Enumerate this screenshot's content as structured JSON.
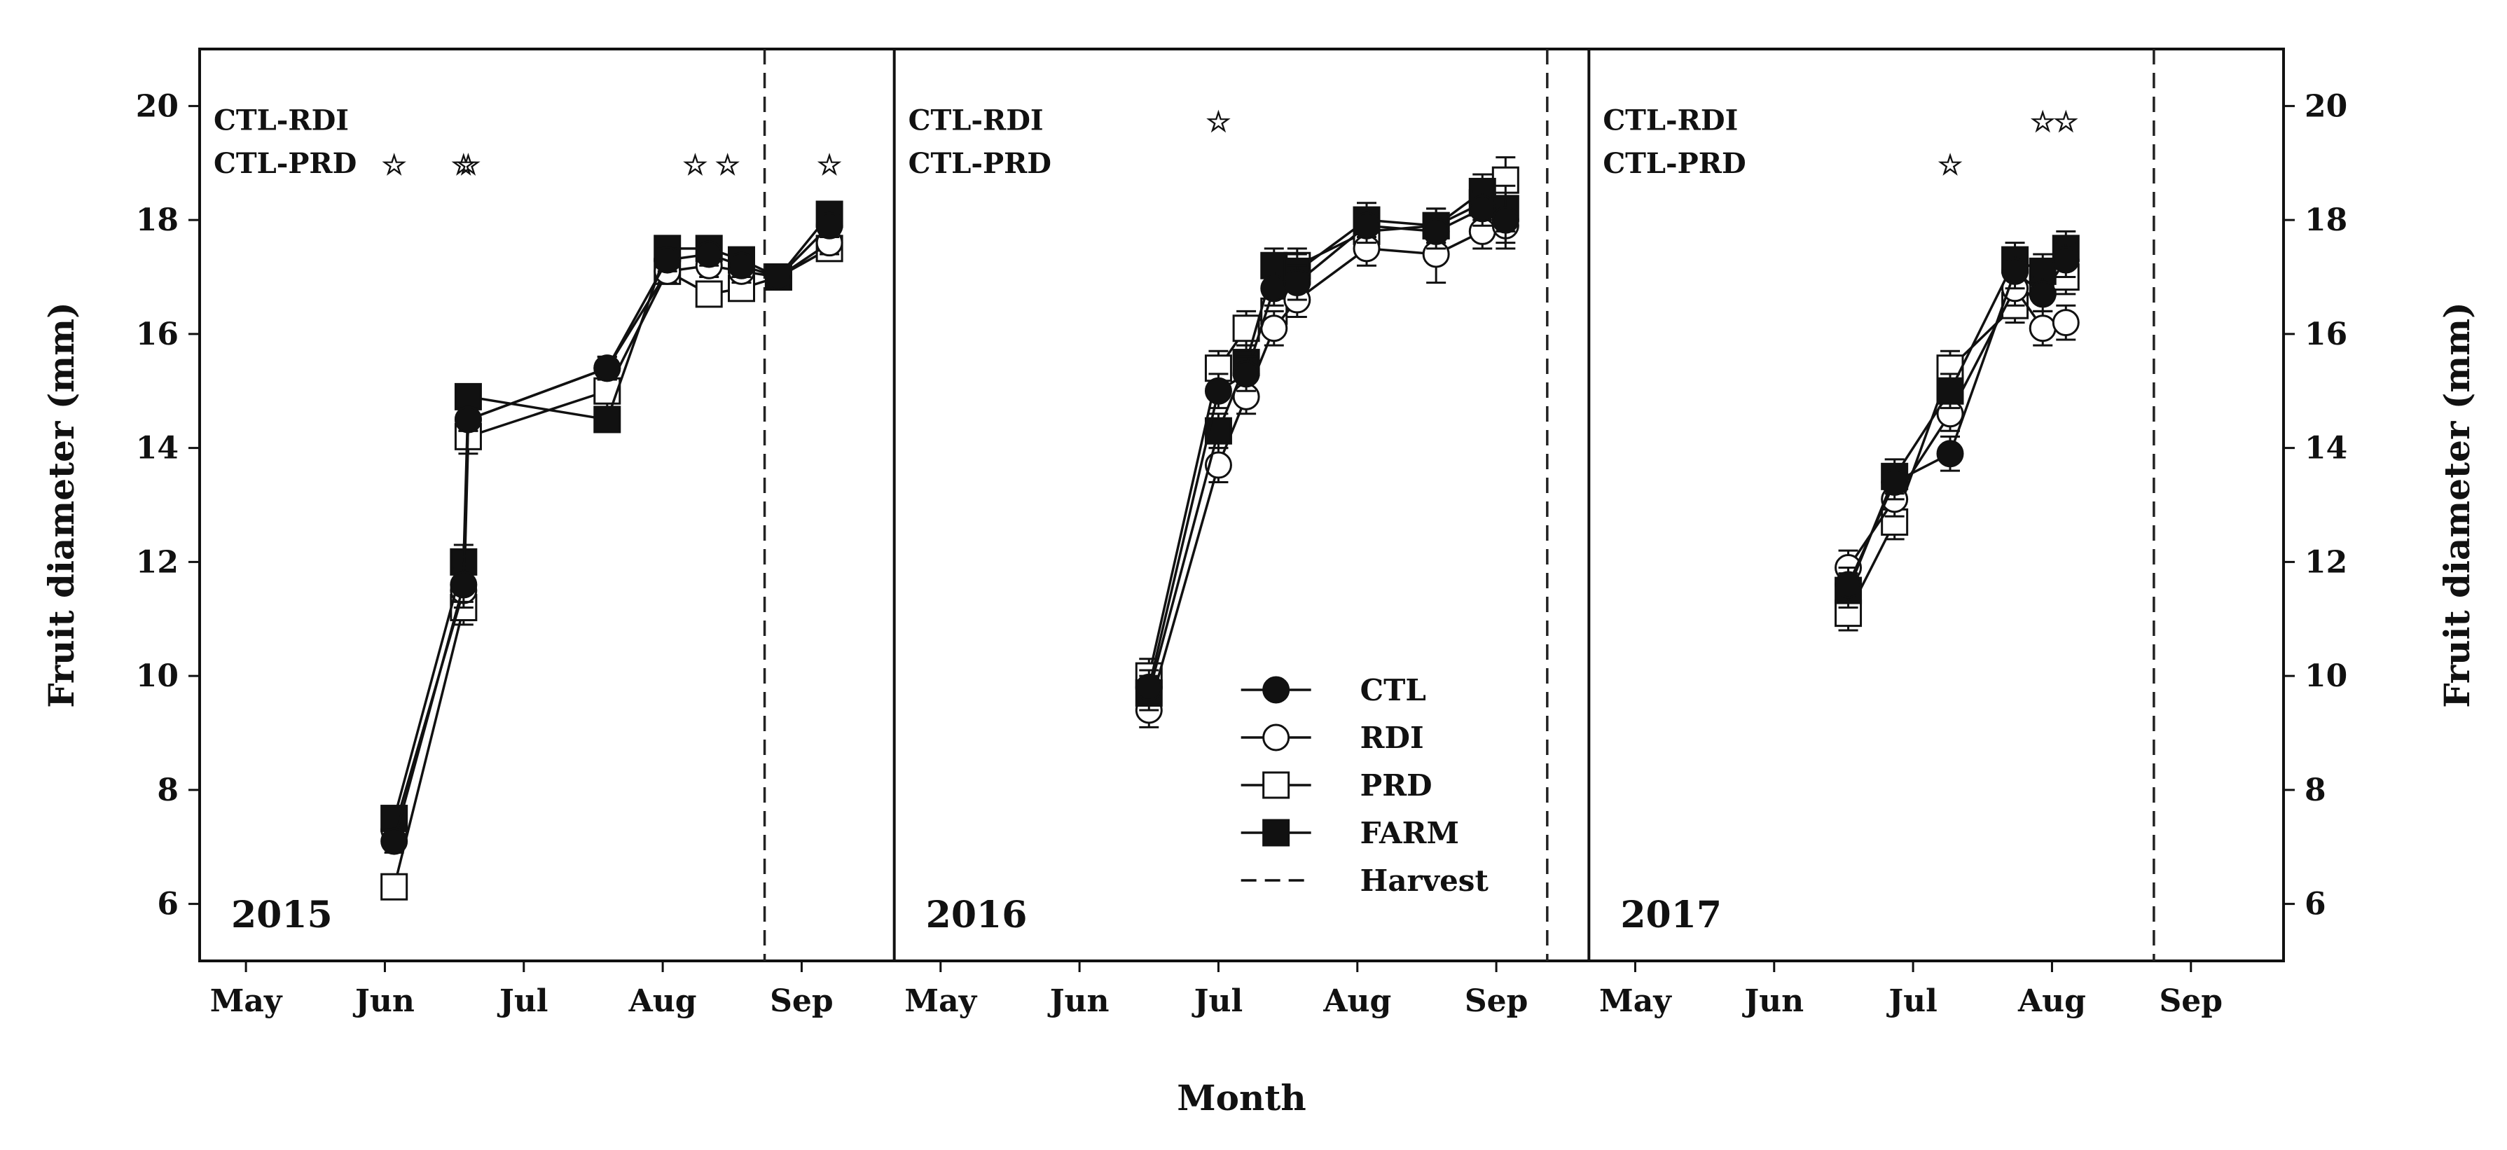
{
  "chart_data": {
    "type": "line",
    "xlabel": "Month",
    "ylabel_left": "Fruit diameter (mm)",
    "ylabel_right": "Fruit diameter (mm)",
    "ylim": [
      5,
      21
    ],
    "yticks": [
      6,
      8,
      10,
      12,
      14,
      16,
      18,
      20
    ],
    "month_ticks": [
      "May",
      "Jun",
      "Jul",
      "Aug",
      "Sep"
    ],
    "xlim_days": [
      -10,
      140
    ],
    "x_unit": "days since May 1",
    "comparison_labels": [
      "CTL-RDI",
      "CTL-PRD"
    ],
    "legend": [
      {
        "name": "CTL",
        "marker": "filled-circle"
      },
      {
        "name": "RDI",
        "marker": "open-circle"
      },
      {
        "name": "PRD",
        "marker": "open-square"
      },
      {
        "name": "FARM",
        "marker": "filled-square"
      },
      {
        "name": "Harvest",
        "marker": "dashed-line"
      }
    ],
    "panels": [
      {
        "year": "2015",
        "harvest_day": 112,
        "stars": {
          "CTL-RDI": [],
          "CTL-PRD": [
            32,
            47,
            48,
            97,
            104,
            126
          ]
        },
        "series": [
          {
            "name": "CTL",
            "x": [
              32,
              47,
              48,
              78,
              91,
              100,
              107,
              115,
              126
            ],
            "y": [
              7.1,
              11.6,
              14.5,
              15.4,
              17.3,
              17.4,
              17.2,
              17.0,
              17.9
            ],
            "err": [
              0.2,
              0.3,
              0.2,
              0.2,
              0.2,
              0.2,
              0.2,
              0.1,
              0.2
            ]
          },
          {
            "name": "RDI",
            "x": [
              32,
              47,
              48,
              78,
              91,
              100,
              107,
              115,
              126
            ],
            "y": [
              7.3,
              11.5,
              14.5,
              15.4,
              17.1,
              17.2,
              17.1,
              17.0,
              17.6
            ],
            "err": [
              0.2,
              0.3,
              0.2,
              0.2,
              0.2,
              0.2,
              0.2,
              0.1,
              0.2
            ]
          },
          {
            "name": "PRD",
            "x": [
              32,
              47,
              48,
              78,
              91,
              100,
              107,
              115,
              126
            ],
            "y": [
              6.3,
              11.2,
              14.2,
              15.0,
              17.1,
              16.7,
              16.8,
              17.0,
              17.5
            ],
            "err": [
              0.2,
              0.3,
              0.3,
              0.3,
              0.2,
              0.2,
              0.2,
              0.1,
              0.2
            ]
          },
          {
            "name": "FARM",
            "x": [
              32,
              47,
              48,
              78,
              91,
              100,
              107,
              115,
              126
            ],
            "y": [
              7.5,
              12.0,
              14.9,
              14.5,
              17.5,
              17.5,
              17.3,
              17.0,
              18.1
            ],
            "err": [
              0.2,
              0.3,
              0.2,
              0.2,
              0.2,
              0.2,
              0.2,
              0.1,
              0.2
            ]
          }
        ]
      },
      {
        "year": "2016",
        "harvest_day": 131,
        "stars": {
          "CTL-RDI": [
            60
          ],
          "CTL-PRD": []
        },
        "series": [
          {
            "name": "CTL",
            "x": [
              45,
              60,
              66,
              72,
              77,
              92,
              107,
              117,
              122
            ],
            "y": [
              9.8,
              15.0,
              15.3,
              16.8,
              16.9,
              17.9,
              17.8,
              18.2,
              18.0
            ],
            "err": [
              0.3,
              0.3,
              0.3,
              0.3,
              0.3,
              0.3,
              0.3,
              0.3,
              0.4
            ]
          },
          {
            "name": "RDI",
            "x": [
              45,
              60,
              66,
              72,
              77,
              92,
              107,
              117,
              122
            ],
            "y": [
              9.4,
              13.7,
              14.9,
              16.1,
              16.6,
              17.5,
              17.4,
              17.8,
              17.9
            ],
            "err": [
              0.3,
              0.3,
              0.3,
              0.3,
              0.3,
              0.3,
              0.5,
              0.3,
              0.4
            ]
          },
          {
            "name": "PRD",
            "x": [
              45,
              60,
              66,
              72,
              77,
              92,
              107,
              117,
              122
            ],
            "y": [
              10.0,
              15.4,
              16.1,
              16.4,
              17.2,
              17.8,
              17.9,
              18.3,
              18.7
            ],
            "err": [
              0.3,
              0.3,
              0.3,
              0.3,
              0.3,
              0.3,
              0.3,
              0.3,
              0.4
            ]
          },
          {
            "name": "FARM",
            "x": [
              45,
              60,
              66,
              72,
              77,
              92,
              107,
              117,
              122
            ],
            "y": [
              9.7,
              14.3,
              15.5,
              17.2,
              17.1,
              18.0,
              17.9,
              18.5,
              18.2
            ],
            "err": [
              0.3,
              0.3,
              0.3,
              0.3,
              0.3,
              0.3,
              0.3,
              0.3,
              0.4
            ]
          }
        ]
      },
      {
        "year": "2017",
        "harvest_day": 112,
        "stars": {
          "CTL-RDI": [
            88,
            93
          ],
          "CTL-PRD": [
            68
          ]
        },
        "series": [
          {
            "name": "CTL",
            "x": [
              46,
              56,
              68,
              82,
              88,
              93
            ],
            "y": [
              11.6,
              13.4,
              13.9,
              17.1,
              16.7,
              17.3
            ],
            "err": [
              0.3,
              0.3,
              0.3,
              0.3,
              0.3,
              0.3
            ]
          },
          {
            "name": "RDI",
            "x": [
              46,
              56,
              68,
              82,
              88,
              93
            ],
            "y": [
              11.9,
              13.1,
              14.6,
              16.8,
              16.1,
              16.2
            ],
            "err": [
              0.3,
              0.3,
              0.3,
              0.3,
              0.3,
              0.3
            ]
          },
          {
            "name": "PRD",
            "x": [
              46,
              56,
              68,
              82,
              88,
              93
            ],
            "y": [
              11.1,
              12.7,
              15.4,
              16.5,
              16.9,
              17.0
            ],
            "err": [
              0.3,
              0.3,
              0.3,
              0.3,
              0.3,
              0.3
            ]
          },
          {
            "name": "FARM",
            "x": [
              46,
              56,
              68,
              82,
              88,
              93
            ],
            "y": [
              11.5,
              13.5,
              15.0,
              17.3,
              17.1,
              17.5
            ],
            "err": [
              0.3,
              0.3,
              0.3,
              0.3,
              0.3,
              0.3
            ]
          }
        ]
      }
    ]
  }
}
